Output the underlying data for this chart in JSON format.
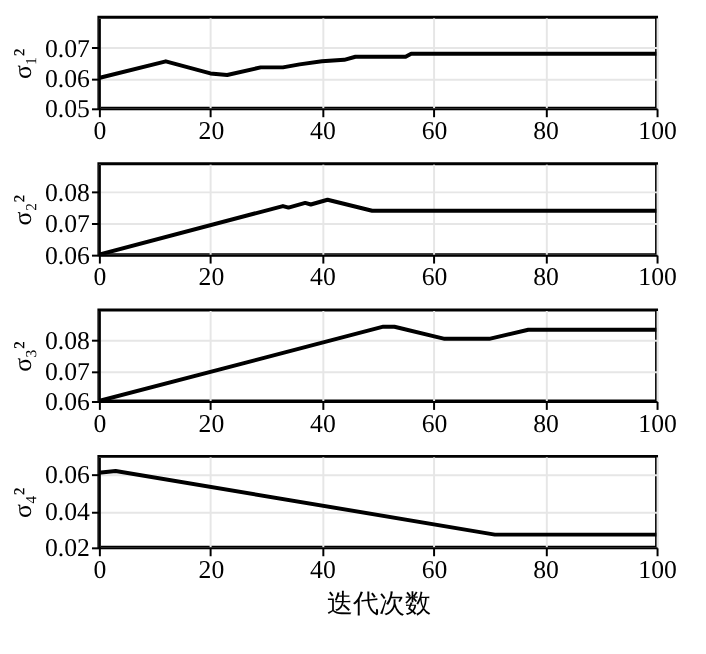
{
  "chart_data": [
    {
      "type": "line",
      "ylabel": "σ₁²",
      "x": [
        0,
        12,
        20,
        23,
        29,
        33,
        36,
        40,
        44,
        46,
        55,
        56,
        100
      ],
      "series": [
        {
          "color": "#000000",
          "values": [
            0.06,
            0.0655,
            0.0615,
            0.061,
            0.0635,
            0.0635,
            0.0645,
            0.0655,
            0.066,
            0.067,
            0.067,
            0.068,
            0.068
          ]
        }
      ],
      "xlim": [
        0,
        100
      ],
      "xticks": [
        0,
        20,
        40,
        60,
        80,
        100
      ],
      "ylim": [
        0.05,
        0.08
      ],
      "yticks": [
        0.05,
        0.06,
        0.07
      ],
      "grid": true,
      "line_style": "solid"
    },
    {
      "type": "line",
      "ylabel": "σ₂²",
      "x": [
        0,
        33,
        34,
        37,
        38,
        41,
        49,
        100
      ],
      "series": [
        {
          "color": "#000000",
          "values": [
            0.06,
            0.0755,
            0.075,
            0.0765,
            0.076,
            0.0775,
            0.074,
            0.074
          ]
        }
      ],
      "xlim": [
        0,
        100
      ],
      "xticks": [
        0,
        20,
        40,
        60,
        80,
        100
      ],
      "ylim": [
        0.06,
        0.089
      ],
      "yticks": [
        0.06,
        0.07,
        0.08
      ],
      "grid": true,
      "line_style": "solid"
    },
    {
      "type": "line",
      "ylabel": "σ₃²",
      "x": [
        0,
        51,
        53,
        62,
        70,
        77,
        100
      ],
      "series": [
        {
          "color": "#000000",
          "values": [
            0.06,
            0.0845,
            0.0845,
            0.0805,
            0.0805,
            0.0835,
            0.0835
          ]
        }
      ],
      "xlim": [
        0,
        100
      ],
      "xticks": [
        0,
        20,
        40,
        60,
        80,
        100
      ],
      "ylim": [
        0.06,
        0.09
      ],
      "yticks": [
        0.06,
        0.07,
        0.08
      ],
      "grid": true,
      "line_style": "solid"
    },
    {
      "type": "line",
      "ylabel": "σ₄²",
      "xlabel": "迭代次数",
      "x": [
        0,
        3,
        71,
        100
      ],
      "series": [
        {
          "color": "#000000",
          "values": [
            0.061,
            0.062,
            0.027,
            0.027
          ]
        }
      ],
      "xlim": [
        0,
        100
      ],
      "xticks": [
        0,
        20,
        40,
        60,
        80,
        100
      ],
      "ylim": [
        0.02,
        0.07
      ],
      "yticks": [
        0.02,
        0.04,
        0.06
      ],
      "grid": true,
      "line_style": "solid"
    }
  ]
}
